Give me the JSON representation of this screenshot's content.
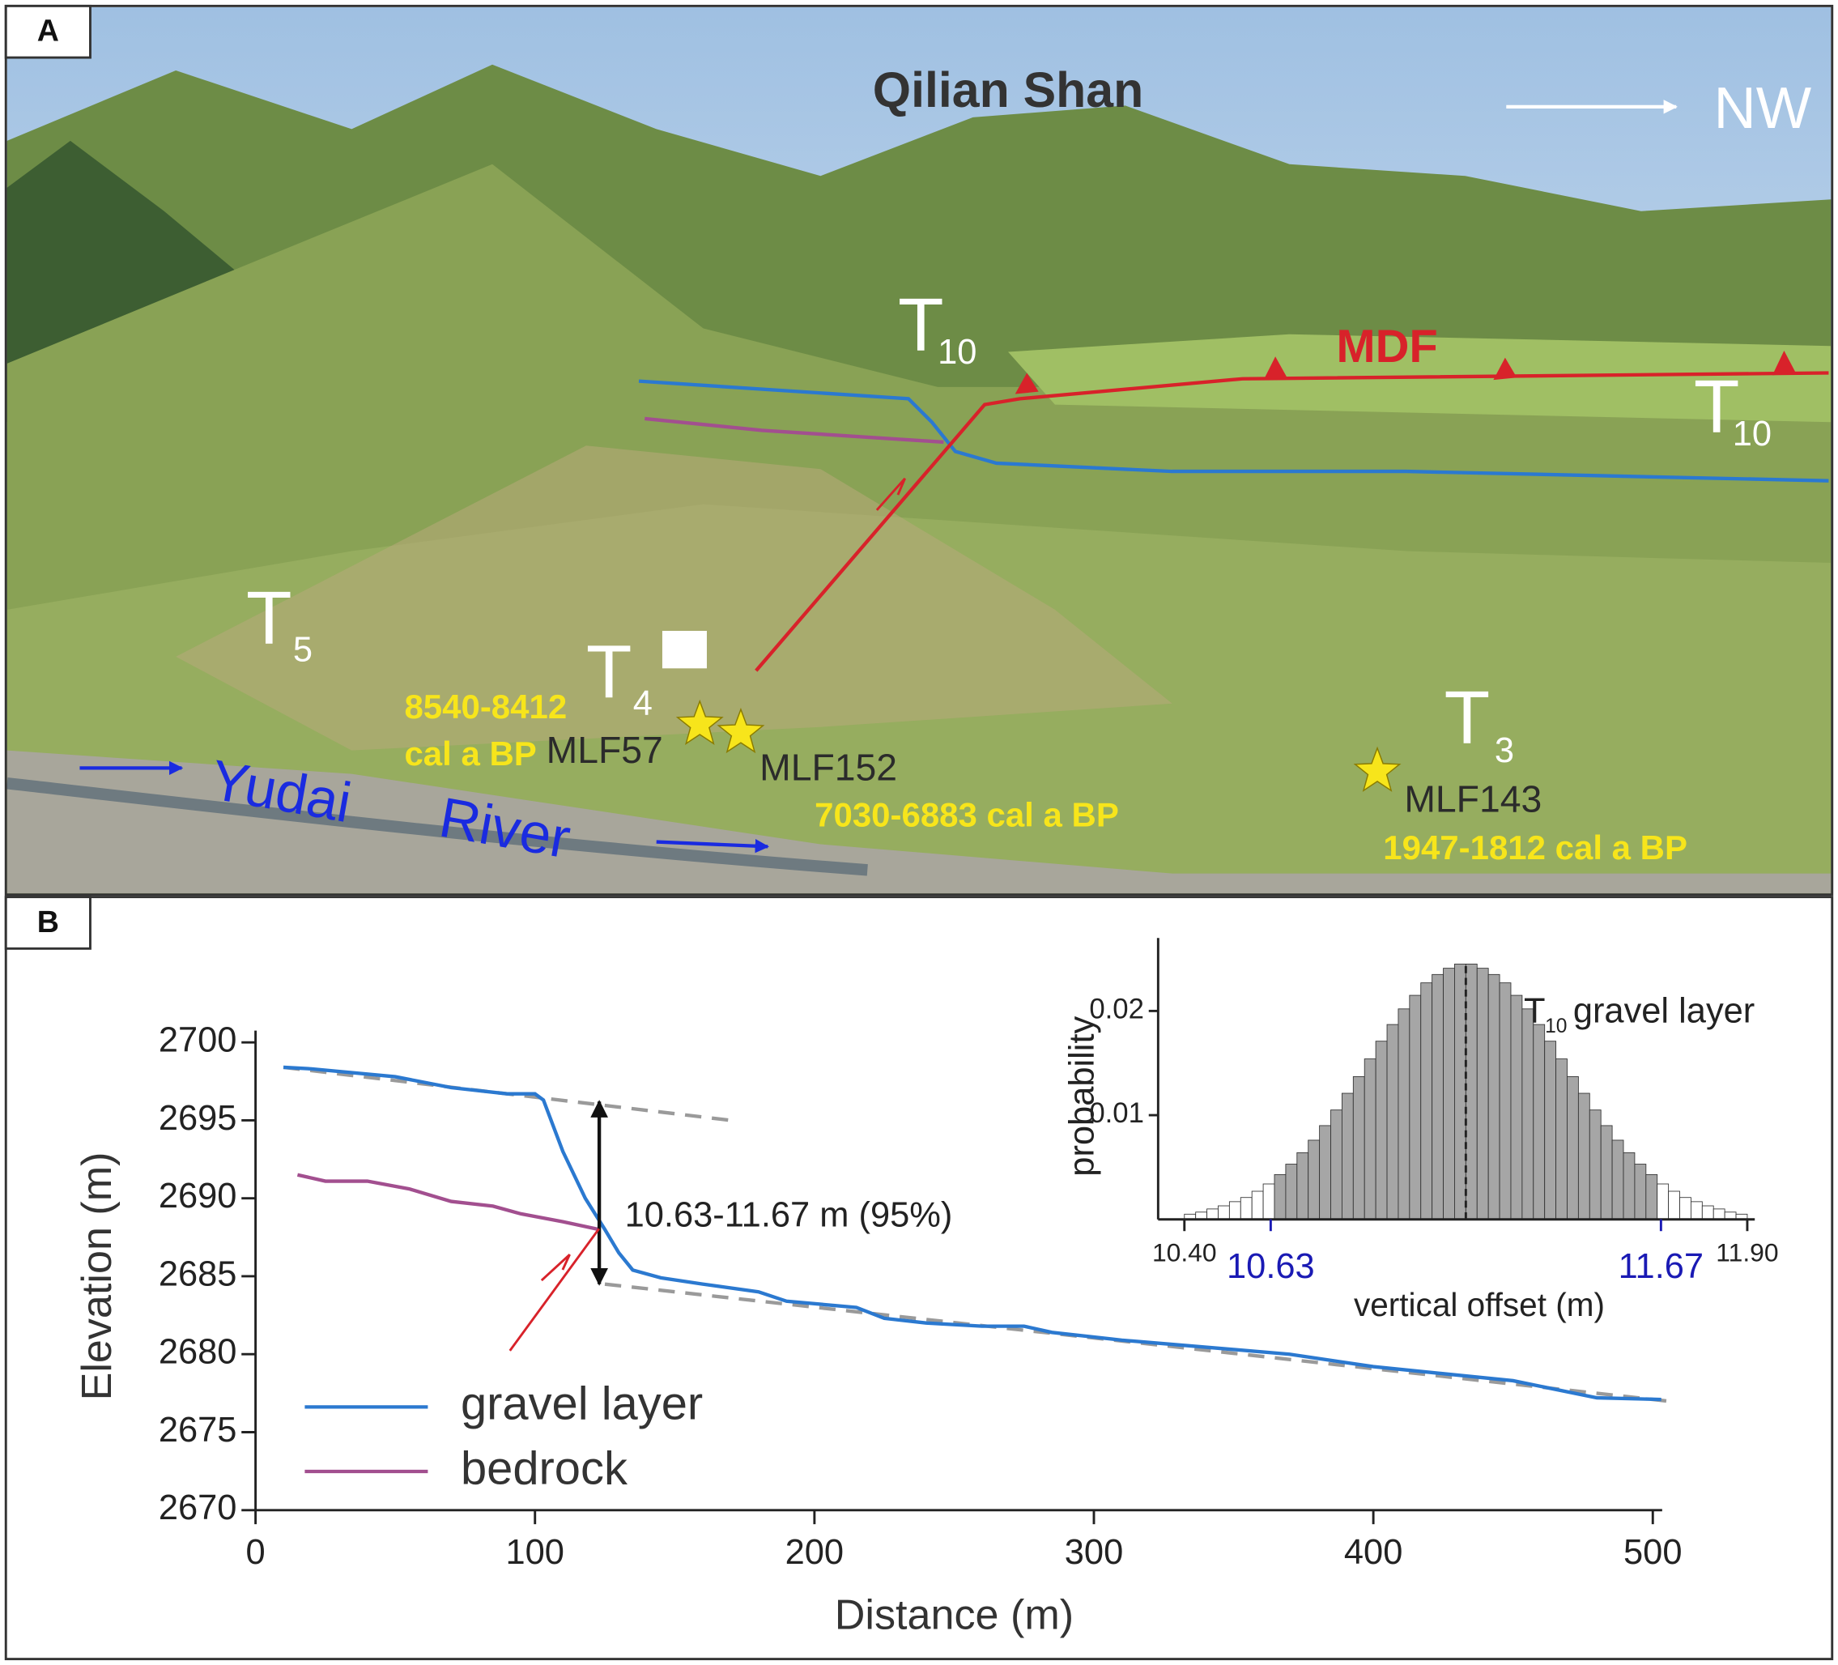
{
  "panel_a": {
    "label": "A",
    "title": "Qilian Shan",
    "direction": "NW",
    "fault": "MDF",
    "terraces": [
      {
        "letter": "T",
        "sub": "10"
      },
      {
        "letter": "T",
        "sub": "10"
      },
      {
        "letter": "T",
        "sub": "5"
      },
      {
        "letter": "T",
        "sub": "4"
      },
      {
        "letter": "T",
        "sub": "3"
      }
    ],
    "samples": [
      {
        "name": "MLF57",
        "age": [
          "8540-8412",
          "cal a BP"
        ]
      },
      {
        "name": "MLF152",
        "age": [
          "7030-6883 cal a BP"
        ]
      },
      {
        "name": "MLF143",
        "age": [
          "1947-1812 cal a BP"
        ]
      }
    ],
    "river": [
      "Yudai",
      "River"
    ]
  },
  "panel_b": {
    "label": "B"
  },
  "chart_data": [
    {
      "type": "line",
      "xlabel": "Distance (m)",
      "ylabel": "Elevation (m)",
      "xlim": [
        0,
        500
      ],
      "ylim": [
        2670,
        2700
      ],
      "xticks": [
        0,
        100,
        200,
        300,
        400,
        500
      ],
      "yticks": [
        2670,
        2675,
        2680,
        2685,
        2690,
        2695,
        2700
      ],
      "series": [
        {
          "name": "gravel layer",
          "color": "#2b79d0",
          "x": [
            10,
            20,
            50,
            70,
            90,
            100,
            103,
            110,
            118,
            125,
            130,
            135,
            145,
            160,
            180,
            190,
            215,
            225,
            240,
            260,
            275,
            285,
            310,
            350,
            370,
            400,
            450,
            480,
            503
          ],
          "values": [
            2698.4,
            2698.3,
            2697.8,
            2697.1,
            2696.7,
            2696.7,
            2696.3,
            2693,
            2690,
            2688,
            2686.5,
            2685.4,
            2684.9,
            2684.5,
            2684,
            2683.4,
            2683,
            2682.3,
            2682,
            2681.8,
            2681.8,
            2681.4,
            2680.9,
            2680.3,
            2680,
            2679.2,
            2678.3,
            2677.2,
            2677.1
          ]
        },
        {
          "name": "bedrock",
          "color": "#a24f8f",
          "x": [
            15,
            25,
            40,
            55,
            70,
            85,
            95,
            110,
            123
          ],
          "values": [
            2691.5,
            2691.1,
            2691.1,
            2690.6,
            2689.8,
            2689.5,
            2689,
            2688.5,
            2688
          ]
        }
      ],
      "reference_lines": [
        {
          "color": "#9a9a9a",
          "x": [
            10,
            170
          ],
          "values": [
            2698.4,
            2695
          ]
        },
        {
          "color": "#9a9a9a",
          "x": [
            125,
            505
          ],
          "values": [
            2684.5,
            2677
          ]
        }
      ],
      "offset_arrow": {
        "x": 123,
        "values": [
          2696.2,
          2684.5
        ],
        "color": "#111111"
      },
      "annotation": "10.63-11.67 m (95%)"
    },
    {
      "type": "histogram",
      "title": "T",
      "title_sub": "10",
      "title_rest": "gravel layer",
      "xlabel": "vertical offset (m)",
      "ylabel": "probability",
      "xlim": [
        10.33,
        11.92
      ],
      "ylim": [
        0,
        0.027
      ],
      "xticks": [
        {
          "value": 10.4,
          "label": "10.40"
        },
        10.63,
        11.67,
        {
          "value": 11.9,
          "label": "11.90"
        }
      ],
      "yticks": [
        0.01,
        0.02
      ],
      "interval": [
        10.63,
        11.67
      ],
      "interval_color": "#1a1ab4",
      "color": "#a6a6a6",
      "tail_color": "#ffffff",
      "mean": 11.15,
      "bins": [
        10.4,
        10.43,
        10.46,
        10.49,
        10.52,
        10.55,
        10.58,
        10.61,
        10.64,
        10.67,
        10.7,
        10.73,
        10.76,
        10.79,
        10.82,
        10.85,
        10.88,
        10.91,
        10.94,
        10.97,
        11.0,
        11.03,
        11.06,
        11.09,
        11.12,
        11.15,
        11.18,
        11.21,
        11.24,
        11.27,
        11.3,
        11.33,
        11.36,
        11.39,
        11.42,
        11.45,
        11.48,
        11.51,
        11.54,
        11.57,
        11.6,
        11.63,
        11.66,
        11.69,
        11.72,
        11.75,
        11.78,
        11.81,
        11.84,
        11.87,
        11.9
      ],
      "values": [
        0.0005,
        0.0007,
        0.001,
        0.0013,
        0.0017,
        0.0021,
        0.0027,
        0.0034,
        0.0043,
        0.0053,
        0.0064,
        0.0076,
        0.009,
        0.0105,
        0.0121,
        0.0137,
        0.0154,
        0.0171,
        0.0187,
        0.0202,
        0.0215,
        0.0227,
        0.0235,
        0.0241,
        0.0245,
        0.0245,
        0.0241,
        0.0235,
        0.0227,
        0.0215,
        0.0202,
        0.0187,
        0.0171,
        0.0154,
        0.0137,
        0.0121,
        0.0105,
        0.009,
        0.0076,
        0.0064,
        0.0053,
        0.0043,
        0.0034,
        0.0027,
        0.0021,
        0.0017,
        0.0013,
        0.001,
        0.0007,
        0.0005
      ]
    }
  ]
}
